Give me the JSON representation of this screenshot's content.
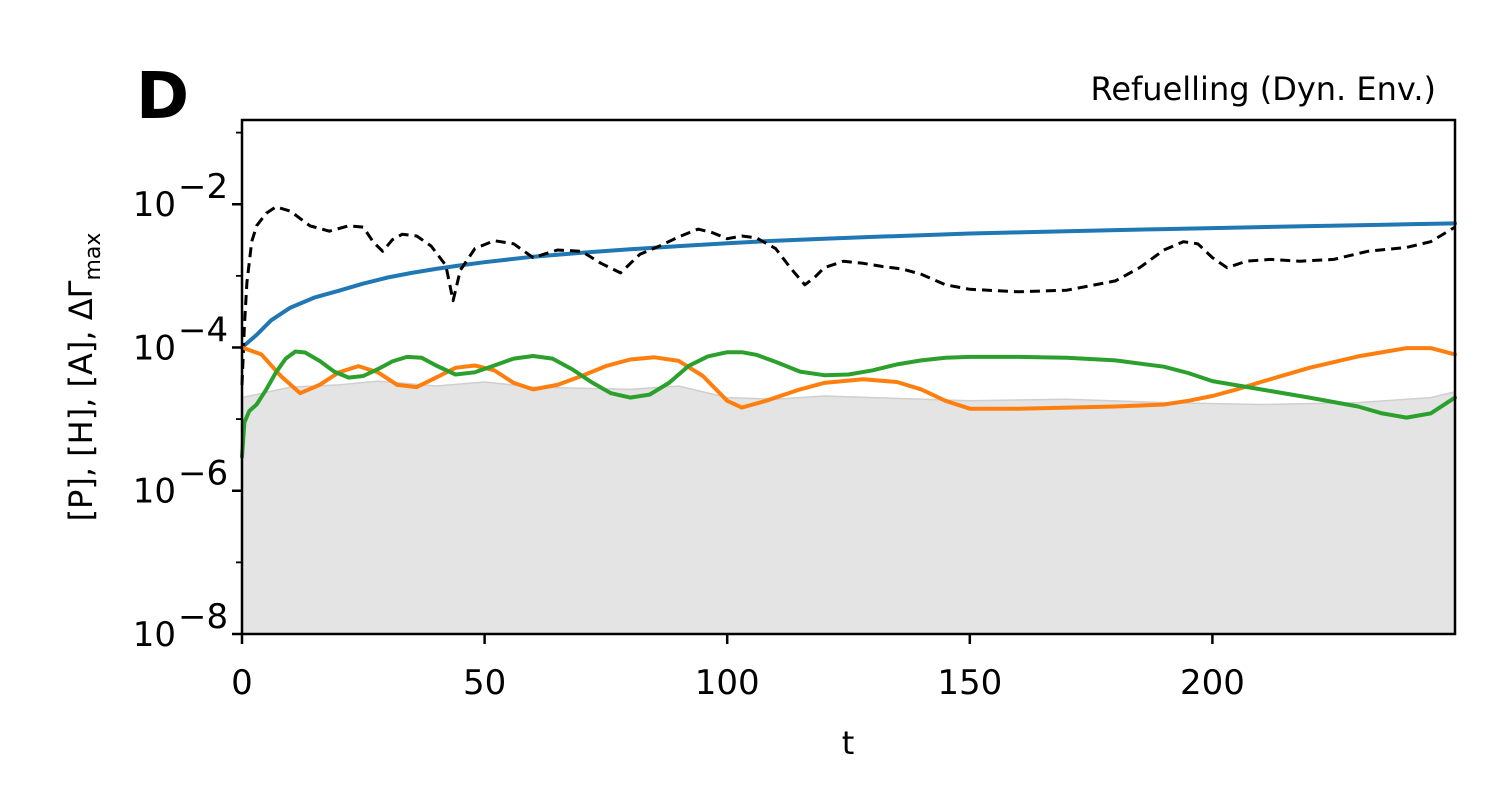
{
  "chart_data": {
    "type": "line",
    "panel_label": "D",
    "title": "Refuelling (Dyn. Env.)",
    "xlabel": "t",
    "ylabel": "[P], [H], [A], ΔΓ",
    "ylabel_subscript": "max",
    "xlim": [
      0,
      250
    ],
    "ylim": [
      1e-08,
      0.15
    ],
    "yscale": "log",
    "xticks": [
      0,
      50,
      100,
      150,
      200
    ],
    "xtick_labels": [
      "0",
      "50",
      "100",
      "150",
      "200"
    ],
    "yticks": [
      1e-08,
      1e-06,
      0.0001,
      0.01
    ],
    "ytick_labels": [
      {
        "base": "10",
        "exp": "−8"
      },
      {
        "base": "10",
        "exp": "−6"
      },
      {
        "base": "10",
        "exp": "−4"
      },
      {
        "base": "10",
        "exp": "−2"
      }
    ],
    "grid": false,
    "legend": "none",
    "shaded_region": {
      "color": "#e4e4e4",
      "edge_color": "#cfcfcf",
      "x": [
        0,
        10,
        20,
        28,
        40,
        50,
        60,
        70,
        80,
        90,
        100,
        110,
        120,
        130,
        150,
        170,
        190,
        210,
        230,
        245,
        250
      ],
      "upper": [
        2e-05,
        2.8e-05,
        3e-05,
        3.4e-05,
        2.9e-05,
        3.3e-05,
        2.8e-05,
        2.7e-05,
        2.6e-05,
        2.9e-05,
        2e-05,
        1.9e-05,
        2.1e-05,
        2e-05,
        1.8e-05,
        1.9e-05,
        1.7e-05,
        1.6e-05,
        1.7e-05,
        2e-05,
        2.4e-05
      ]
    },
    "series": [
      {
        "color": "#1f77b4",
        "style": "solid",
        "x": [
          0,
          3,
          6,
          10,
          15,
          20,
          25,
          30,
          35,
          40,
          45,
          50,
          60,
          70,
          80,
          90,
          100,
          110,
          120,
          130,
          140,
          150,
          160,
          170,
          180,
          190,
          200,
          210,
          220,
          230,
          240,
          250
        ],
        "y": [
          0.0001,
          0.00015,
          0.00024,
          0.00036,
          0.0005,
          0.00062,
          0.00078,
          0.00095,
          0.0011,
          0.00125,
          0.0014,
          0.00155,
          0.00185,
          0.0021,
          0.00235,
          0.0026,
          0.00285,
          0.0031,
          0.0033,
          0.0035,
          0.0037,
          0.0039,
          0.00405,
          0.0042,
          0.00435,
          0.0045,
          0.00465,
          0.0048,
          0.00495,
          0.0051,
          0.00525,
          0.0054
        ]
      },
      {
        "color": "#000000",
        "style": "dashed",
        "x": [
          0,
          0.5,
          1,
          2,
          3,
          5,
          7,
          10,
          14,
          18,
          22,
          25,
          27,
          29,
          31,
          33,
          36,
          39,
          42,
          43.5,
          45,
          48,
          52,
          56,
          60,
          65,
          70,
          74,
          78,
          82,
          86,
          90,
          94,
          97,
          100,
          103,
          106,
          110,
          113,
          116,
          118,
          120,
          124,
          128,
          132,
          136,
          140,
          145,
          150,
          160,
          170,
          180,
          185,
          190,
          194,
          197,
          200,
          203,
          207,
          212,
          218,
          225,
          232,
          240,
          245,
          250
        ],
        "y": [
          3e-05,
          0.0002,
          0.0008,
          0.003,
          0.005,
          0.0075,
          0.0092,
          0.008,
          0.005,
          0.0042,
          0.005,
          0.0048,
          0.003,
          0.0022,
          0.0032,
          0.0038,
          0.0036,
          0.0026,
          0.0014,
          0.00045,
          0.0012,
          0.0024,
          0.0031,
          0.0028,
          0.0018,
          0.0023,
          0.0022,
          0.0015,
          0.0011,
          0.002,
          0.0026,
          0.0035,
          0.0045,
          0.004,
          0.0033,
          0.0036,
          0.0034,
          0.0024,
          0.0013,
          0.00075,
          0.00095,
          0.0013,
          0.0016,
          0.0015,
          0.00135,
          0.00125,
          0.00105,
          0.00075,
          0.00065,
          0.0006,
          0.00063,
          0.00085,
          0.0013,
          0.0023,
          0.003,
          0.0028,
          0.0018,
          0.0013,
          0.0016,
          0.0017,
          0.0016,
          0.0017,
          0.0022,
          0.0025,
          0.003,
          0.0048
        ]
      },
      {
        "color": "#ff7f0e",
        "style": "solid",
        "x": [
          0,
          4,
          8,
          12,
          16,
          20,
          24,
          28,
          32,
          36,
          40,
          44,
          48,
          52,
          56,
          60,
          65,
          70,
          75,
          80,
          85,
          90,
          95,
          100,
          103,
          108,
          115,
          120,
          128,
          135,
          140,
          145,
          150,
          160,
          170,
          180,
          190,
          195,
          200,
          205,
          210,
          220,
          230,
          240,
          245,
          250
        ],
        "y": [
          0.0001,
          8e-05,
          4e-05,
          2.3e-05,
          3e-05,
          4.5e-05,
          5.5e-05,
          4.5e-05,
          3e-05,
          2.8e-05,
          3.8e-05,
          5.2e-05,
          5.6e-05,
          4.8e-05,
          3.2e-05,
          2.6e-05,
          3e-05,
          4e-05,
          5.5e-05,
          6.8e-05,
          7.3e-05,
          6.5e-05,
          4e-05,
          1.8e-05,
          1.45e-05,
          1.8e-05,
          2.6e-05,
          3.2e-05,
          3.6e-05,
          3.3e-05,
          2.6e-05,
          1.8e-05,
          1.4e-05,
          1.4e-05,
          1.45e-05,
          1.5e-05,
          1.6e-05,
          1.8e-05,
          2.1e-05,
          2.6e-05,
          3.3e-05,
          5.2e-05,
          7.5e-05,
          9.8e-05,
          9.8e-05,
          8e-05
        ]
      },
      {
        "color": "#2ca02c",
        "style": "solid",
        "x": [
          0,
          0.5,
          1.5,
          3,
          5,
          7,
          9,
          11,
          13,
          16,
          19,
          22,
          25,
          28,
          31,
          34,
          37,
          40,
          44,
          48,
          52,
          56,
          60,
          64,
          68,
          72,
          76,
          80,
          84,
          88,
          92,
          96,
          100,
          103,
          106,
          110,
          115,
          120,
          125,
          130,
          135,
          140,
          145,
          150,
          160,
          170,
          180,
          190,
          195,
          200,
          210,
          220,
          230,
          235,
          240,
          245,
          250
        ],
        "y": [
          3e-06,
          9e-06,
          1.3e-05,
          1.6e-05,
          2.6e-05,
          4.5e-05,
          7e-05,
          8.8e-05,
          8.5e-05,
          6.5e-05,
          4.6e-05,
          3.8e-05,
          4e-05,
          5e-05,
          6.4e-05,
          7.4e-05,
          7.2e-05,
          5.6e-05,
          4.2e-05,
          4.5e-05,
          5.6e-05,
          7e-05,
          7.6e-05,
          7e-05,
          5e-05,
          3.3e-05,
          2.3e-05,
          2e-05,
          2.2e-05,
          3.2e-05,
          5.5e-05,
          7.5e-05,
          8.6e-05,
          8.6e-05,
          7.9e-05,
          6.3e-05,
          4.6e-05,
          4.1e-05,
          4.2e-05,
          4.8e-05,
          5.8e-05,
          6.6e-05,
          7.2e-05,
          7.4e-05,
          7.4e-05,
          7.2e-05,
          6.6e-05,
          5.4e-05,
          4.4e-05,
          3.4e-05,
          2.6e-05,
          2e-05,
          1.5e-05,
          1.2e-05,
          1.05e-05,
          1.2e-05,
          2e-05
        ]
      }
    ]
  }
}
